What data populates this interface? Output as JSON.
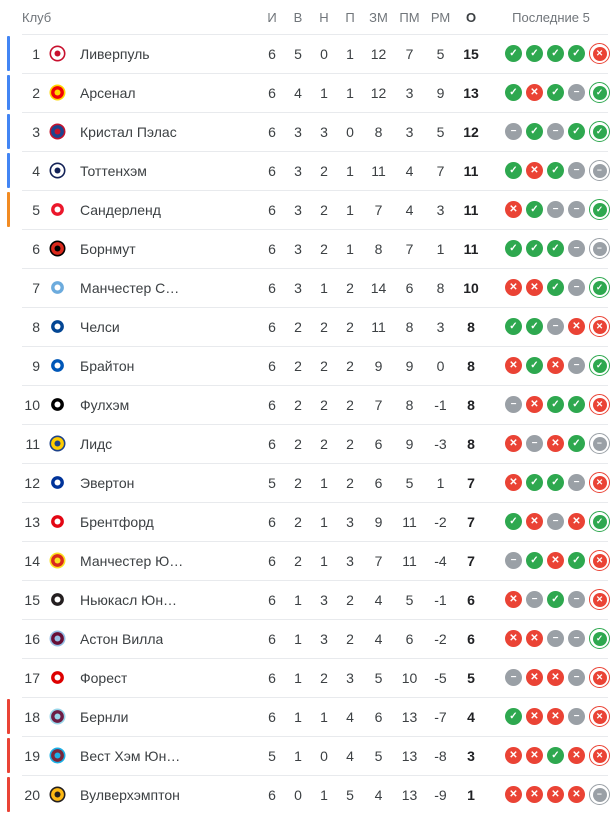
{
  "header": {
    "club": "Клуб",
    "stats": [
      "И",
      "В",
      "Н",
      "П",
      "ЗМ",
      "ПМ",
      "РМ",
      "О"
    ],
    "last5": "Последние 5"
  },
  "colors": {
    "win": "#2ea84f",
    "loss": "#ea4335",
    "draw": "#9aa0a6",
    "zone_ucl": "#4285f4",
    "zone_uel": "#f28b22",
    "zone_rel": "#ea4335",
    "divider": "#e8eaed"
  },
  "icons": {
    "w": "✓",
    "l": "✕",
    "d": "−"
  },
  "rows": [
    {
      "pos": "1",
      "name": "Ливерпуль",
      "zone": "ucl",
      "logo": {
        "primary": "#ffffff",
        "secondary": "#c8102e"
      },
      "stats": [
        "6",
        "5",
        "0",
        "1",
        "12",
        "7",
        "5",
        "15"
      ],
      "form": [
        "w",
        "w",
        "w",
        "w",
        "l"
      ]
    },
    {
      "pos": "2",
      "name": "Арсенал",
      "zone": "ucl",
      "logo": {
        "primary": "#ef0107",
        "secondary": "#ffd700"
      },
      "stats": [
        "6",
        "4",
        "1",
        "1",
        "12",
        "3",
        "9",
        "13"
      ],
      "form": [
        "w",
        "l",
        "w",
        "d",
        "w"
      ]
    },
    {
      "pos": "3",
      "name": "Кристал Пэлас",
      "zone": "ucl",
      "logo": {
        "primary": "#1b458f",
        "secondary": "#c4122e"
      },
      "stats": [
        "6",
        "3",
        "3",
        "0",
        "8",
        "3",
        "5",
        "12"
      ],
      "form": [
        "d",
        "w",
        "d",
        "w",
        "w"
      ]
    },
    {
      "pos": "4",
      "name": "Тоттенхэм",
      "zone": "ucl",
      "logo": {
        "primary": "#ffffff",
        "secondary": "#132257"
      },
      "stats": [
        "6",
        "3",
        "2",
        "1",
        "11",
        "4",
        "7",
        "11"
      ],
      "form": [
        "w",
        "l",
        "w",
        "d",
        "d"
      ]
    },
    {
      "pos": "5",
      "name": "Сандерленд",
      "zone": "uel",
      "logo": {
        "primary": "#eb172b",
        "secondary": "#ffffff"
      },
      "stats": [
        "6",
        "3",
        "2",
        "1",
        "7",
        "4",
        "3",
        "11"
      ],
      "form": [
        "l",
        "w",
        "d",
        "d",
        "w"
      ]
    },
    {
      "pos": "6",
      "name": "Борнмут",
      "zone": "none",
      "logo": {
        "primary": "#da291c",
        "secondary": "#000000"
      },
      "stats": [
        "6",
        "3",
        "2",
        "1",
        "8",
        "7",
        "1",
        "11"
      ],
      "form": [
        "w",
        "w",
        "w",
        "d",
        "d"
      ]
    },
    {
      "pos": "7",
      "name": "Манчестер С…",
      "zone": "none",
      "logo": {
        "primary": "#6cabdd",
        "secondary": "#ffffff"
      },
      "stats": [
        "6",
        "3",
        "1",
        "2",
        "14",
        "6",
        "8",
        "10"
      ],
      "form": [
        "l",
        "l",
        "w",
        "d",
        "w"
      ]
    },
    {
      "pos": "8",
      "name": "Челси",
      "zone": "none",
      "logo": {
        "primary": "#034694",
        "secondary": "#ffffff"
      },
      "stats": [
        "6",
        "2",
        "2",
        "2",
        "11",
        "8",
        "3",
        "8"
      ],
      "form": [
        "w",
        "w",
        "d",
        "l",
        "l"
      ]
    },
    {
      "pos": "9",
      "name": "Брайтон",
      "zone": "none",
      "logo": {
        "primary": "#0057b8",
        "secondary": "#ffffff"
      },
      "stats": [
        "6",
        "2",
        "2",
        "2",
        "9",
        "9",
        "0",
        "8"
      ],
      "form": [
        "l",
        "w",
        "l",
        "d",
        "w"
      ]
    },
    {
      "pos": "10",
      "name": "Фулхэм",
      "zone": "none",
      "logo": {
        "primary": "#000000",
        "secondary": "#ffffff"
      },
      "stats": [
        "6",
        "2",
        "2",
        "2",
        "7",
        "8",
        "-1",
        "8"
      ],
      "form": [
        "d",
        "l",
        "w",
        "w",
        "l"
      ]
    },
    {
      "pos": "11",
      "name": "Лидс",
      "zone": "none",
      "logo": {
        "primary": "#ffcd00",
        "secondary": "#1d428a"
      },
      "stats": [
        "6",
        "2",
        "2",
        "2",
        "6",
        "9",
        "-3",
        "8"
      ],
      "form": [
        "l",
        "d",
        "l",
        "w",
        "d"
      ]
    },
    {
      "pos": "12",
      "name": "Эвертон",
      "zone": "none",
      "logo": {
        "primary": "#003399",
        "secondary": "#ffffff"
      },
      "stats": [
        "5",
        "2",
        "1",
        "2",
        "6",
        "5",
        "1",
        "7"
      ],
      "form": [
        "l",
        "w",
        "w",
        "d",
        "l"
      ]
    },
    {
      "pos": "13",
      "name": "Брентфорд",
      "zone": "none",
      "logo": {
        "primary": "#e30613",
        "secondary": "#ffffff"
      },
      "stats": [
        "6",
        "2",
        "1",
        "3",
        "9",
        "11",
        "-2",
        "7"
      ],
      "form": [
        "w",
        "l",
        "d",
        "l",
        "w"
      ]
    },
    {
      "pos": "14",
      "name": "Манчестер Ю…",
      "zone": "none",
      "logo": {
        "primary": "#da291c",
        "secondary": "#fbe122"
      },
      "stats": [
        "6",
        "2",
        "1",
        "3",
        "7",
        "11",
        "-4",
        "7"
      ],
      "form": [
        "d",
        "w",
        "l",
        "w",
        "l"
      ]
    },
    {
      "pos": "15",
      "name": "Ньюкасл Юн…",
      "zone": "none",
      "logo": {
        "primary": "#241f20",
        "secondary": "#ffffff"
      },
      "stats": [
        "6",
        "1",
        "3",
        "2",
        "4",
        "5",
        "-1",
        "6"
      ],
      "form": [
        "l",
        "d",
        "w",
        "d",
        "l"
      ]
    },
    {
      "pos": "16",
      "name": "Астон Вилла",
      "zone": "none",
      "logo": {
        "primary": "#670e36",
        "secondary": "#95bfe5"
      },
      "stats": [
        "6",
        "1",
        "3",
        "2",
        "4",
        "6",
        "-2",
        "6"
      ],
      "form": [
        "l",
        "l",
        "d",
        "d",
        "w"
      ]
    },
    {
      "pos": "17",
      "name": "Форест",
      "zone": "none",
      "logo": {
        "primary": "#dd0000",
        "secondary": "#ffffff"
      },
      "stats": [
        "6",
        "1",
        "2",
        "3",
        "5",
        "10",
        "-5",
        "5"
      ],
      "form": [
        "d",
        "l",
        "l",
        "d",
        "l"
      ]
    },
    {
      "pos": "18",
      "name": "Бернли",
      "zone": "rel",
      "logo": {
        "primary": "#6c1d45",
        "secondary": "#99d6ea"
      },
      "stats": [
        "6",
        "1",
        "1",
        "4",
        "6",
        "13",
        "-7",
        "4"
      ],
      "form": [
        "w",
        "l",
        "l",
        "d",
        "l"
      ]
    },
    {
      "pos": "19",
      "name": "Вест Хэм Юн…",
      "zone": "rel",
      "logo": {
        "primary": "#7a263a",
        "secondary": "#1bb1e7"
      },
      "stats": [
        "5",
        "1",
        "0",
        "4",
        "5",
        "13",
        "-8",
        "3"
      ],
      "form": [
        "l",
        "l",
        "w",
        "l",
        "l"
      ]
    },
    {
      "pos": "20",
      "name": "Вулверхэмптон",
      "zone": "rel",
      "logo": {
        "primary": "#fdb913",
        "secondary": "#231f20"
      },
      "stats": [
        "6",
        "0",
        "1",
        "5",
        "4",
        "13",
        "-9",
        "1"
      ],
      "form": [
        "l",
        "l",
        "l",
        "l",
        "d"
      ]
    }
  ]
}
